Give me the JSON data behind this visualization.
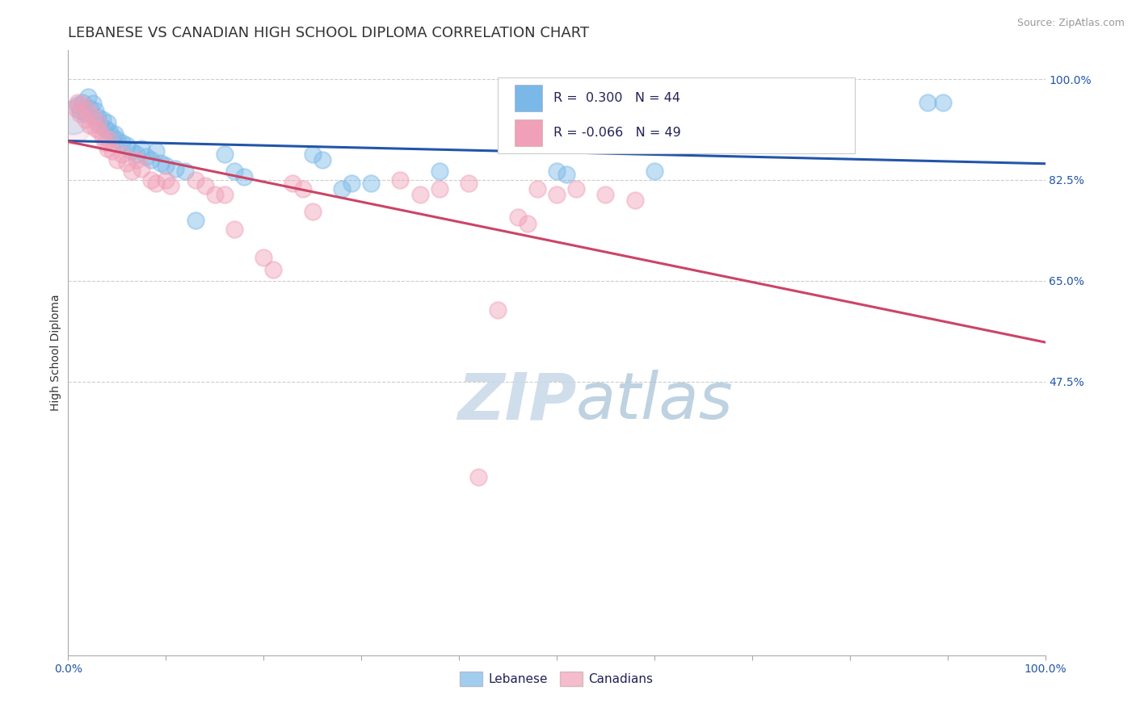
{
  "title": "LEBANESE VS CANADIAN HIGH SCHOOL DIPLOMA CORRELATION CHART",
  "source": "Source: ZipAtlas.com",
  "ylabel": "High School Diploma",
  "x_min": 0.0,
  "x_max": 1.0,
  "y_min": 0.0,
  "y_max": 1.05,
  "grid_color": "#cccccc",
  "background_color": "#ffffff",
  "blue_color": "#7ab8e8",
  "pink_color": "#f0a0b8",
  "blue_line_color": "#2255aa",
  "pink_line_color": "#cc4466",
  "legend_r1_val": "0.300",
  "legend_n1_val": "44",
  "legend_r2_val": "-0.066",
  "legend_n2_val": "49",
  "blue_scatter": [
    [
      0.01,
      0.955
    ],
    [
      0.012,
      0.945
    ],
    [
      0.015,
      0.96
    ],
    [
      0.018,
      0.94
    ],
    [
      0.02,
      0.97
    ],
    [
      0.022,
      0.95
    ],
    [
      0.025,
      0.958
    ],
    [
      0.028,
      0.945
    ],
    [
      0.03,
      0.935
    ],
    [
      0.032,
      0.92
    ],
    [
      0.035,
      0.93
    ],
    [
      0.038,
      0.915
    ],
    [
      0.04,
      0.925
    ],
    [
      0.042,
      0.91
    ],
    [
      0.045,
      0.9
    ],
    [
      0.048,
      0.905
    ],
    [
      0.05,
      0.895
    ],
    [
      0.055,
      0.89
    ],
    [
      0.06,
      0.885
    ],
    [
      0.065,
      0.875
    ],
    [
      0.07,
      0.87
    ],
    [
      0.075,
      0.88
    ],
    [
      0.08,
      0.865
    ],
    [
      0.085,
      0.86
    ],
    [
      0.09,
      0.875
    ],
    [
      0.095,
      0.855
    ],
    [
      0.1,
      0.85
    ],
    [
      0.11,
      0.845
    ],
    [
      0.12,
      0.84
    ],
    [
      0.13,
      0.755
    ],
    [
      0.16,
      0.87
    ],
    [
      0.17,
      0.84
    ],
    [
      0.18,
      0.83
    ],
    [
      0.25,
      0.87
    ],
    [
      0.26,
      0.86
    ],
    [
      0.38,
      0.84
    ],
    [
      0.5,
      0.84
    ],
    [
      0.51,
      0.835
    ],
    [
      0.6,
      0.84
    ],
    [
      0.88,
      0.96
    ],
    [
      0.895,
      0.96
    ],
    [
      0.28,
      0.81
    ],
    [
      0.29,
      0.82
    ],
    [
      0.31,
      0.82
    ]
  ],
  "pink_scatter": [
    [
      0.008,
      0.95
    ],
    [
      0.01,
      0.96
    ],
    [
      0.012,
      0.94
    ],
    [
      0.015,
      0.955
    ],
    [
      0.018,
      0.93
    ],
    [
      0.02,
      0.945
    ],
    [
      0.022,
      0.92
    ],
    [
      0.025,
      0.935
    ],
    [
      0.028,
      0.915
    ],
    [
      0.03,
      0.925
    ],
    [
      0.032,
      0.91
    ],
    [
      0.035,
      0.9
    ],
    [
      0.038,
      0.89
    ],
    [
      0.04,
      0.88
    ],
    [
      0.042,
      0.895
    ],
    [
      0.045,
      0.875
    ],
    [
      0.05,
      0.86
    ],
    [
      0.055,
      0.87
    ],
    [
      0.06,
      0.855
    ],
    [
      0.065,
      0.84
    ],
    [
      0.07,
      0.86
    ],
    [
      0.075,
      0.845
    ],
    [
      0.085,
      0.825
    ],
    [
      0.09,
      0.82
    ],
    [
      0.1,
      0.825
    ],
    [
      0.105,
      0.815
    ],
    [
      0.13,
      0.825
    ],
    [
      0.14,
      0.815
    ],
    [
      0.15,
      0.8
    ],
    [
      0.16,
      0.8
    ],
    [
      0.17,
      0.74
    ],
    [
      0.2,
      0.69
    ],
    [
      0.21,
      0.67
    ],
    [
      0.23,
      0.82
    ],
    [
      0.24,
      0.81
    ],
    [
      0.25,
      0.77
    ],
    [
      0.34,
      0.825
    ],
    [
      0.36,
      0.8
    ],
    [
      0.38,
      0.81
    ],
    [
      0.41,
      0.82
    ],
    [
      0.44,
      0.6
    ],
    [
      0.48,
      0.81
    ],
    [
      0.5,
      0.8
    ],
    [
      0.52,
      0.81
    ],
    [
      0.55,
      0.8
    ],
    [
      0.58,
      0.79
    ],
    [
      0.42,
      0.31
    ],
    [
      0.46,
      0.76
    ],
    [
      0.47,
      0.75
    ]
  ],
  "title_fontsize": 13,
  "label_fontsize": 10,
  "tick_fontsize": 10,
  "source_fontsize": 9
}
